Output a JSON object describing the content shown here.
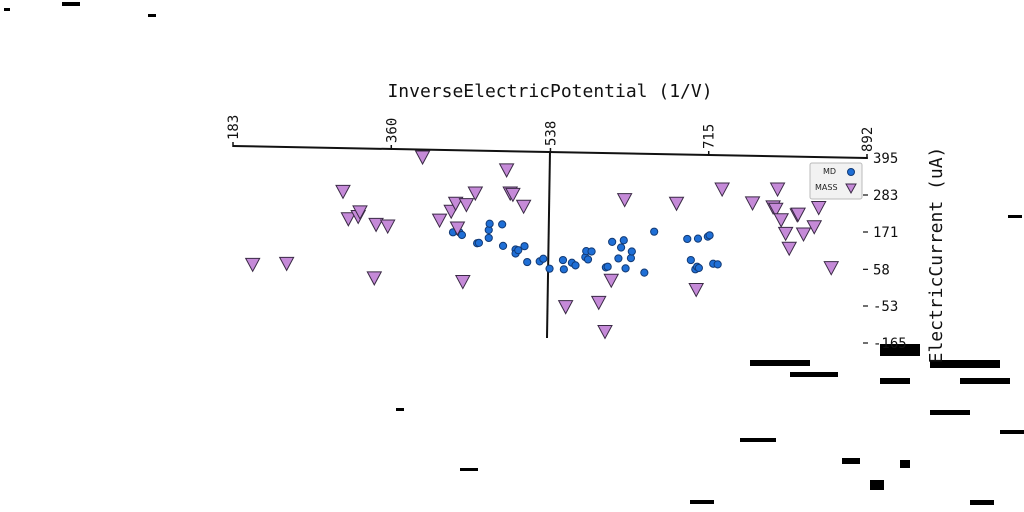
{
  "chart_data": {
    "type": "scatter",
    "title": "",
    "xlabel": "InverseElectricPotential (1/V)",
    "ylabel": "ElectricCurrent (uA)",
    "xlim": [
      183,
      892
    ],
    "ylim": [
      -165,
      395
    ],
    "x_ticks": [
      "183",
      "360",
      "538",
      "715",
      "892"
    ],
    "y_ticks": [
      "395",
      "283",
      "171",
      "58",
      "-53",
      "-165"
    ],
    "x_axis_position": "top",
    "y_axis_position": "right",
    "y_axis_crosses_at_x": 538,
    "grid": false,
    "legend_position": "top-right",
    "series": [
      {
        "name": "MD",
        "marker": "circle",
        "color": "#1f6fd6",
        "x": [
          429,
          436,
          439,
          456,
          458,
          469,
          469,
          470,
          484,
          485,
          499,
          499,
          502,
          509,
          512,
          526,
          530,
          537,
          552,
          553,
          562,
          566,
          577,
          578,
          580,
          584,
          600,
          602,
          607,
          614,
          617,
          620,
          622,
          628,
          629,
          643,
          654,
          691,
          695,
          700,
          702,
          703,
          704,
          714,
          716,
          720,
          725
        ],
        "y": [
          170,
          171,
          162,
          137,
          138,
          153,
          177,
          196,
          194,
          129,
          118,
          106,
          116,
          128,
          80,
          82,
          90,
          60,
          86,
          58,
          78,
          70,
          95,
          113,
          88,
          112,
          64,
          66,
          141,
          91,
          124,
          146,
          61,
          92,
          112,
          48,
          172,
          150,
          86,
          58,
          66,
          151,
          62,
          157,
          161,
          75,
          73
        ]
      },
      {
        "name": "MASS",
        "marker": "triangle-down",
        "color": "#c58ad8",
        "x": [
          205,
          243,
          306,
          312,
          323,
          325,
          341,
          343,
          356,
          395,
          414,
          427,
          432,
          434,
          440,
          444,
          454,
          489,
          493,
          496,
          508,
          555,
          592,
          599,
          606,
          621,
          679,
          701,
          730,
          764,
          787,
          790,
          792,
          796,
          801,
          805,
          814,
          815,
          821,
          833,
          838,
          852
        ],
        "y": [
          73,
          76,
          294,
          211,
          218,
          232,
          32,
          194,
          189,
          398,
          207,
          234,
          258,
          183,
          21,
          254,
          289,
          359,
          289,
          285,
          249,
          -55,
          -42,
          -130,
          25,
          269,
          258,
          -3,
          301,
          259,
          247,
          240,
          301,
          208,
          167,
          122,
          223,
          225,
          165,
          187,
          245,
          63
        ]
      }
    ]
  }
}
